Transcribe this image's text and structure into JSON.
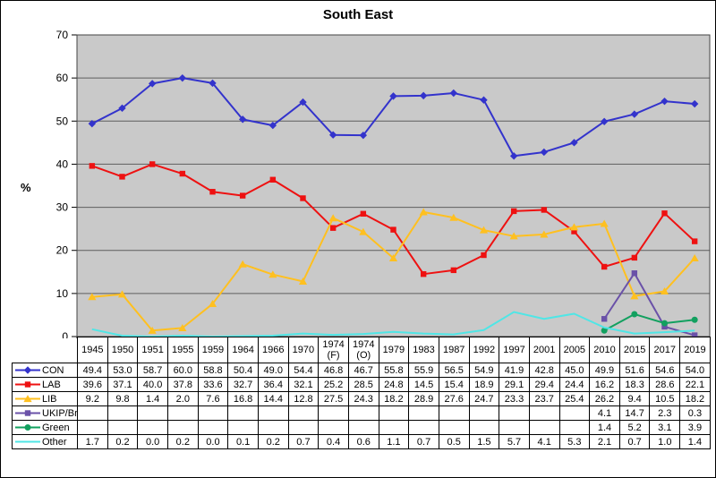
{
  "title": "South East",
  "ylabel": "%",
  "chart_data": {
    "type": "line",
    "title": "South East",
    "xlabel": "",
    "ylabel": "%",
    "ylim": [
      0,
      70
    ],
    "yticks": [
      0,
      10,
      20,
      30,
      40,
      50,
      60,
      70
    ],
    "grid": "horizontal",
    "legend_position": "table-left",
    "plot_bg_color": "#C9C9C9",
    "gridline_color": "#5E5E5E",
    "axis_color": "#000000",
    "categories": [
      "1945",
      "1950",
      "1951",
      "1955",
      "1959",
      "1964",
      "1966",
      "1970",
      "1974 (F)",
      "1974 (O)",
      "1979",
      "1983",
      "1987",
      "1992",
      "1997",
      "2001",
      "2005",
      "2010",
      "2015",
      "2017",
      "2019"
    ],
    "series": [
      {
        "name": "CON",
        "color": "#3333CC",
        "marker": "diamond",
        "values": [
          49.4,
          53.0,
          58.7,
          60.0,
          58.8,
          50.4,
          49.0,
          54.4,
          46.8,
          46.7,
          55.8,
          55.9,
          56.5,
          54.9,
          41.9,
          42.8,
          45.0,
          49.9,
          51.6,
          54.6,
          54.0
        ]
      },
      {
        "name": "LAB",
        "color": "#EE1111",
        "marker": "square",
        "values": [
          39.6,
          37.1,
          40.0,
          37.8,
          33.6,
          32.7,
          36.4,
          32.1,
          25.2,
          28.5,
          24.8,
          14.5,
          15.4,
          18.9,
          29.1,
          29.4,
          24.4,
          16.2,
          18.3,
          28.6,
          22.1
        ]
      },
      {
        "name": "LIB",
        "color": "#FFC020",
        "marker": "triangle",
        "values": [
          9.2,
          9.8,
          1.4,
          2.0,
          7.6,
          16.8,
          14.4,
          12.8,
          27.5,
          24.3,
          18.2,
          28.9,
          27.6,
          24.7,
          23.3,
          23.7,
          25.4,
          26.2,
          9.4,
          10.5,
          18.2
        ]
      },
      {
        "name": "UKIP/Br",
        "color": "#6A51A8",
        "marker": "square",
        "values": [
          null,
          null,
          null,
          null,
          null,
          null,
          null,
          null,
          null,
          null,
          null,
          null,
          null,
          null,
          null,
          null,
          null,
          4.1,
          14.7,
          2.3,
          0.3
        ]
      },
      {
        "name": "Green",
        "color": "#12A05F",
        "marker": "circle",
        "values": [
          null,
          null,
          null,
          null,
          null,
          null,
          null,
          null,
          null,
          null,
          null,
          null,
          null,
          null,
          null,
          null,
          null,
          1.4,
          5.2,
          3.1,
          3.9
        ]
      },
      {
        "name": "Other",
        "color": "#4FE6E6",
        "marker": "none",
        "values": [
          1.7,
          0.2,
          0.0,
          0.2,
          0.0,
          0.1,
          0.2,
          0.7,
          0.4,
          0.6,
          1.1,
          0.7,
          0.5,
          1.5,
          5.7,
          4.1,
          5.3,
          2.1,
          0.7,
          1.0,
          1.4
        ]
      }
    ]
  }
}
